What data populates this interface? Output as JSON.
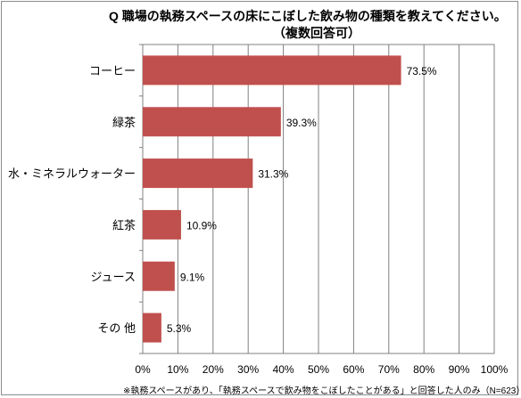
{
  "chart_data": {
    "type": "bar",
    "orientation": "horizontal",
    "title": "Q  職場の執務スペースの床にこぼした飲み物の種類を教えてください。",
    "subtitle": "（複数回答可）",
    "categories": [
      "コーヒー",
      "緑茶",
      "水・ミネラルウォーター",
      "紅茶",
      "ジュース",
      "その 他"
    ],
    "values": [
      73.5,
      39.3,
      31.3,
      10.9,
      9.1,
      5.3
    ],
    "value_labels": [
      "73.5%",
      "39.3%",
      "31.3%",
      "10.9%",
      "9.1%",
      "5.3%"
    ],
    "xlim": [
      0,
      100
    ],
    "x_ticks": [
      "0%",
      "10%",
      "20%",
      "30%",
      "40%",
      "50%",
      "60%",
      "70%",
      "80%",
      "90%",
      "100%"
    ],
    "grid": "vertical",
    "bar_color": "#c0504d",
    "note": "※執務スペースがあり、「執務スペースで飲み物をこぼしたことがある」と回答した人のみ（N=623）"
  }
}
